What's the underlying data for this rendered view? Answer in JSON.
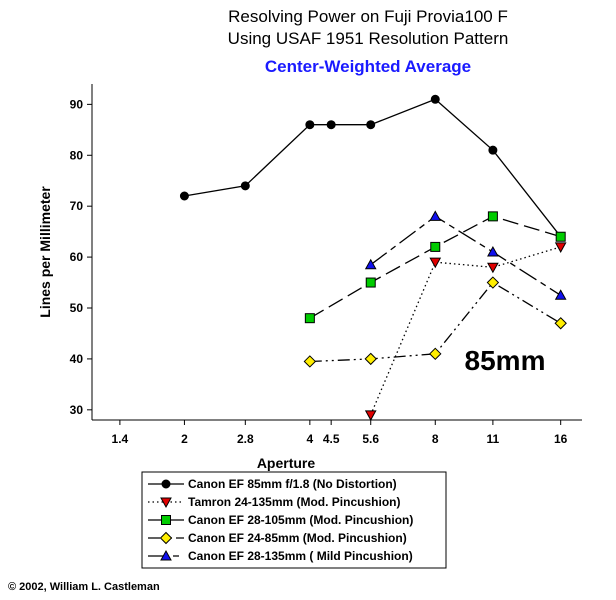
{
  "chart_data": {
    "type": "line",
    "title_line1": "Resolving Power on Fuji Provia100 F",
    "title_line2": "Using USAF 1951 Resolution Pattern",
    "subtitle": "Center-Weighted Average",
    "xlabel": "Aperture",
    "ylabel": "Lines per Millimeter",
    "annotation": "85mm",
    "copyright": "© 2002, William L. Castleman",
    "x_scale": "log",
    "x_ticks": [
      {
        "value": 1.4,
        "label": "1.4"
      },
      {
        "value": 2,
        "label": "2"
      },
      {
        "value": 2.8,
        "label": "2.8"
      },
      {
        "value": 4,
        "label": "4"
      },
      {
        "value": 4.5,
        "label": "4.5"
      },
      {
        "value": 5.6,
        "label": "5.6"
      },
      {
        "value": 8,
        "label": "8"
      },
      {
        "value": 11,
        "label": "11"
      },
      {
        "value": 16,
        "label": "16"
      }
    ],
    "xlim": [
      1.2,
      18
    ],
    "y_ticks": [
      30,
      40,
      50,
      60,
      70,
      80,
      90
    ],
    "ylim": [
      28,
      94
    ],
    "grid": false,
    "legend_position": "bottom",
    "series": [
      {
        "name": "Canon EF 85mm f/1.8 (No Distortion)",
        "color": "#000000",
        "marker": "circle",
        "dash": "solid",
        "points": [
          {
            "x": 2,
            "y": 72
          },
          {
            "x": 2.8,
            "y": 74
          },
          {
            "x": 4,
            "y": 86
          },
          {
            "x": 4.5,
            "y": 86
          },
          {
            "x": 5.6,
            "y": 86
          },
          {
            "x": 8,
            "y": 91
          },
          {
            "x": 11,
            "y": 81
          },
          {
            "x": 16,
            "y": 64
          }
        ]
      },
      {
        "name": "Tamron 24-135mm (Mod. Pincushion)",
        "color": "#e00000",
        "marker": "triangle-down",
        "dash": "dotted",
        "points": [
          {
            "x": 5.6,
            "y": 29
          },
          {
            "x": 8,
            "y": 59
          },
          {
            "x": 11,
            "y": 58
          },
          {
            "x": 16,
            "y": 62
          }
        ]
      },
      {
        "name": "Canon EF 28-105mm (Mod. Pincushion)",
        "color": "#00cc00",
        "marker": "square",
        "dash": "long-dash",
        "points": [
          {
            "x": 4,
            "y": 48
          },
          {
            "x": 5.6,
            "y": 55
          },
          {
            "x": 8,
            "y": 62
          },
          {
            "x": 11,
            "y": 68
          },
          {
            "x": 16,
            "y": 64
          }
        ]
      },
      {
        "name": "Canon EF 24-85mm (Mod. Pincushion)",
        "color": "#ffee00",
        "marker": "diamond",
        "dash": "dash-dot-dot",
        "points": [
          {
            "x": 4,
            "y": 39.5
          },
          {
            "x": 5.6,
            "y": 40
          },
          {
            "x": 8,
            "y": 41
          },
          {
            "x": 11,
            "y": 55
          },
          {
            "x": 16,
            "y": 47
          }
        ]
      },
      {
        "name": "Canon EF 28-135mm ( Mild Pincushion)",
        "color": "#1010ee",
        "marker": "triangle-up",
        "dash": "long-short",
        "points": [
          {
            "x": 5.6,
            "y": 58.5
          },
          {
            "x": 8,
            "y": 68
          },
          {
            "x": 11,
            "y": 61
          },
          {
            "x": 16,
            "y": 52.5
          }
        ]
      }
    ]
  }
}
